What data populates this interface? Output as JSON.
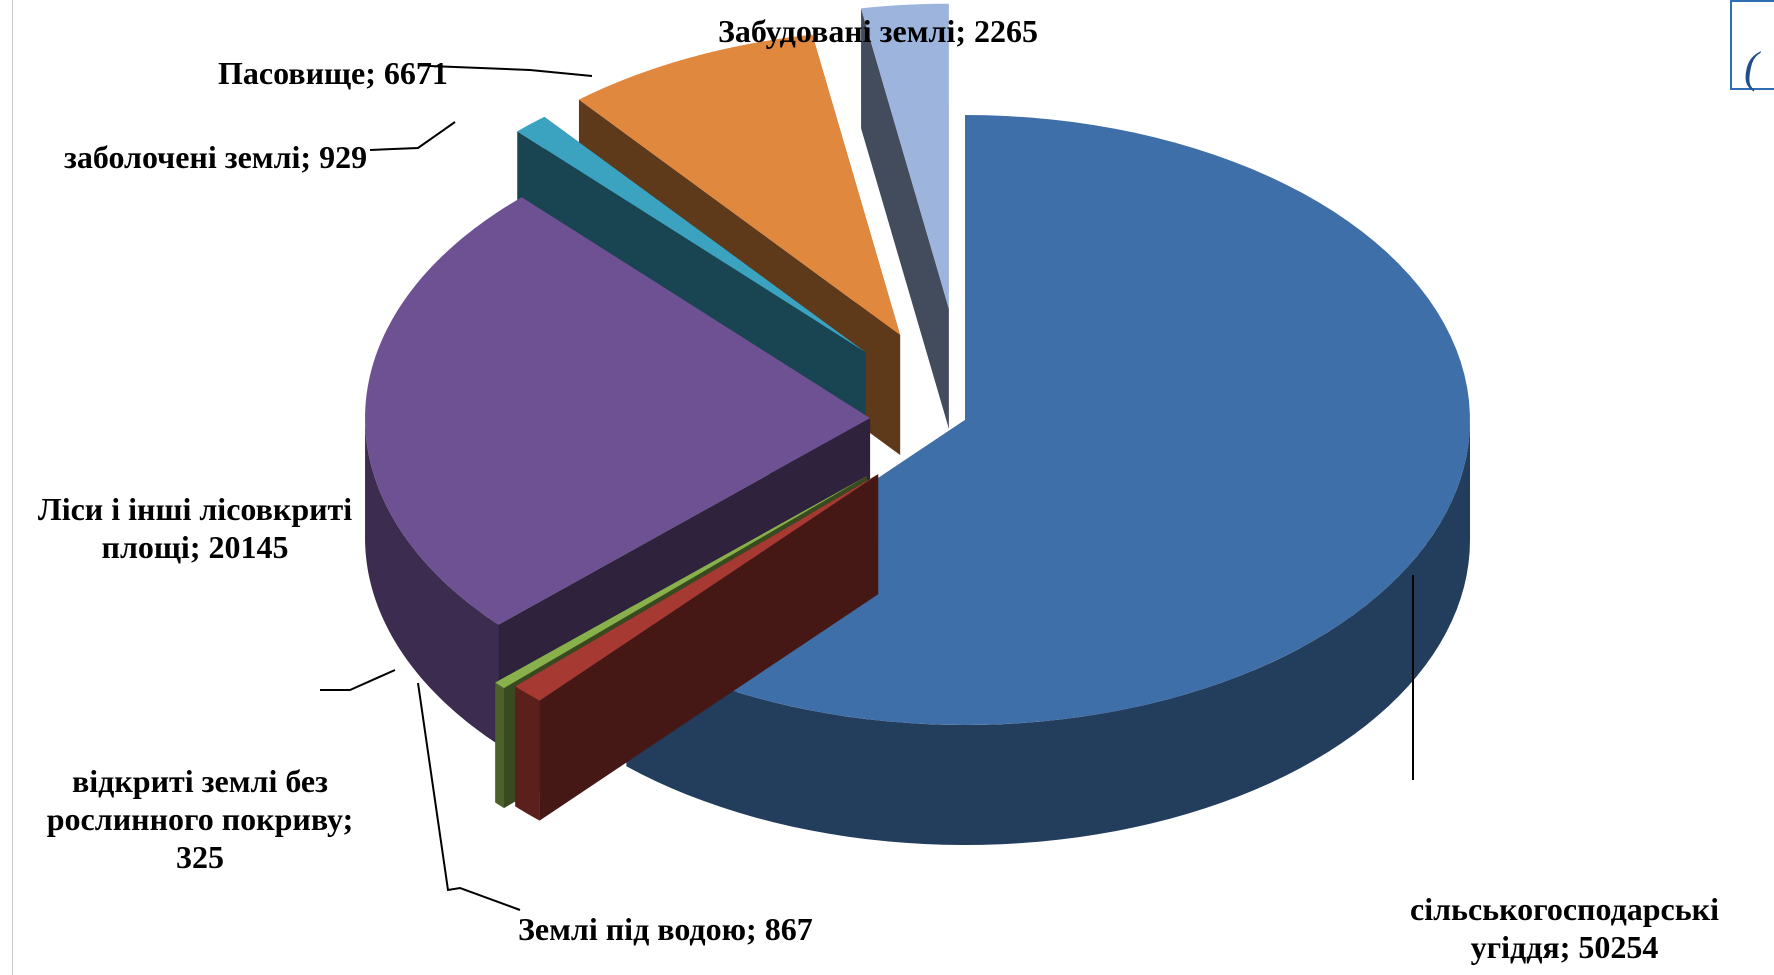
{
  "chart_data": {
    "type": "pie",
    "style": "3d-exploded",
    "title": "",
    "slices": [
      {
        "name": "сільськогосподарські угіддя",
        "value": 50254,
        "color": "#3f6fa8",
        "label_lines": [
          "сільськогосподарські",
          "угіддя; 50254"
        ]
      },
      {
        "name": "Землі під водою",
        "value": 867,
        "color": "#a63a33",
        "label_lines": [
          "Землі під водою; 867"
        ]
      },
      {
        "name": "відкриті землі без рослинного покриву",
        "value": 325,
        "color": "#88b04b",
        "label_lines": [
          "відкриті землі без",
          "рослинного покриву;",
          "325"
        ]
      },
      {
        "name": "Ліси і інші лісовкриті площі",
        "value": 20145,
        "color": "#6d5192",
        "label_lines": [
          "Ліси і інші лісовкриті",
          "площі; 20145"
        ]
      },
      {
        "name": "заболочені землі",
        "value": 929,
        "color": "#3ba3c0",
        "label_lines": [
          "заболочені землі; 929"
        ]
      },
      {
        "name": "Пасовище",
        "value": 6671,
        "color": "#e0883e",
        "label_lines": [
          "Пасовище; 6671"
        ]
      },
      {
        "name": "Забудовані землі",
        "value": 2265,
        "color": "#9db5dd",
        "label_lines": [
          "Забудовані землі; 2265"
        ]
      }
    ]
  }
}
